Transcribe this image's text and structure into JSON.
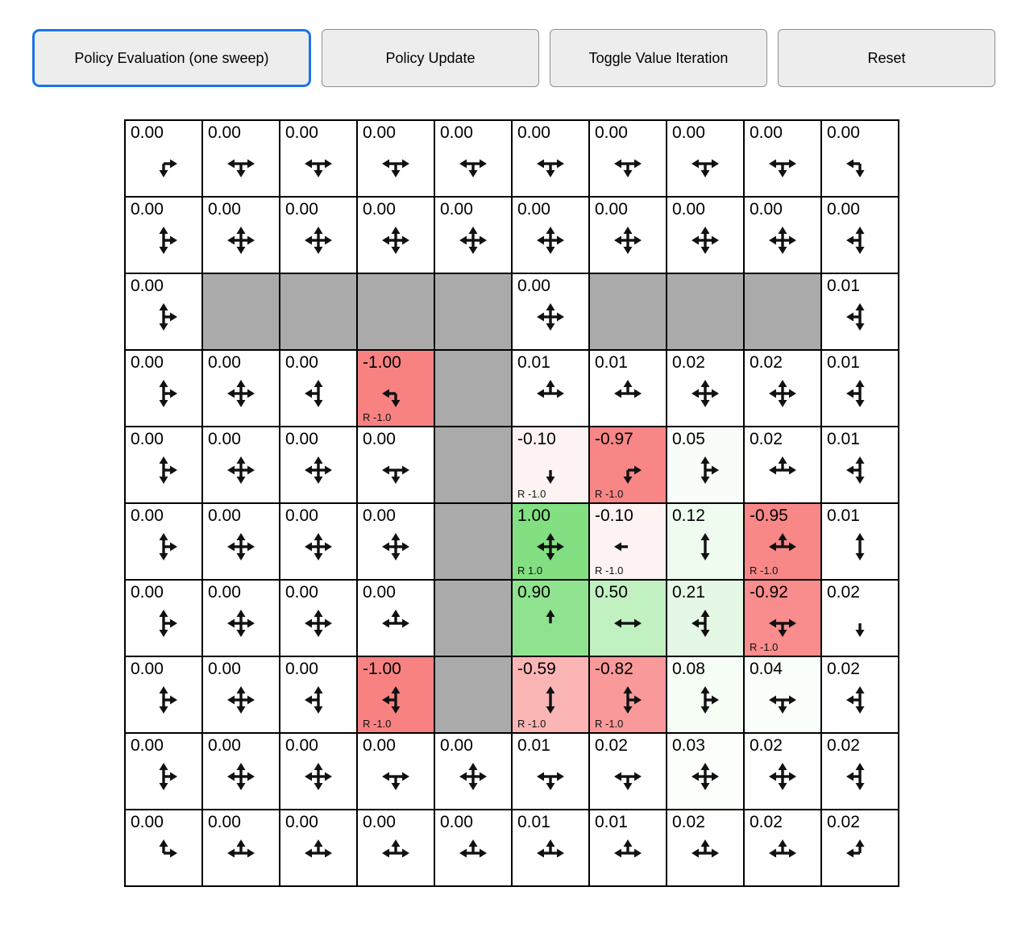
{
  "toolbar": {
    "buttons": [
      {
        "label": "Policy Evaluation (one sweep)",
        "active": true
      },
      {
        "label": "Policy Update",
        "active": false
      },
      {
        "label": "Toggle Value Iteration",
        "active": false
      },
      {
        "label": "Reset",
        "active": false
      }
    ]
  },
  "colors": {
    "active_button_border": "#1a73e8",
    "button_bg": "#ededed",
    "grid_border": "#000000",
    "wall": "#aaaaaa",
    "positive_base": "#82e082",
    "negative_base": "#f88282"
  },
  "grid": {
    "rows": 10,
    "cols": 10,
    "legend": {
      "dirs_key": "U=up, D=down, L=left, R=right"
    },
    "cells": [
      [
        {
          "v": "0.00",
          "d": "RD"
        },
        {
          "v": "0.00",
          "d": "LRD"
        },
        {
          "v": "0.00",
          "d": "LRD"
        },
        {
          "v": "0.00",
          "d": "LRD"
        },
        {
          "v": "0.00",
          "d": "LRD"
        },
        {
          "v": "0.00",
          "d": "LRD"
        },
        {
          "v": "0.00",
          "d": "LRD"
        },
        {
          "v": "0.00",
          "d": "LRD"
        },
        {
          "v": "0.00",
          "d": "LRD"
        },
        {
          "v": "0.00",
          "d": "LD"
        }
      ],
      [
        {
          "v": "0.00",
          "d": "URD"
        },
        {
          "v": "0.00",
          "d": "UDLR"
        },
        {
          "v": "0.00",
          "d": "UDLR"
        },
        {
          "v": "0.00",
          "d": "UDLR"
        },
        {
          "v": "0.00",
          "d": "UDLR"
        },
        {
          "v": "0.00",
          "d": "UDLR"
        },
        {
          "v": "0.00",
          "d": "UDLR"
        },
        {
          "v": "0.00",
          "d": "UDLR"
        },
        {
          "v": "0.00",
          "d": "UDLR"
        },
        {
          "v": "0.00",
          "d": "ULD"
        }
      ],
      [
        {
          "v": "0.00",
          "d": "URD"
        },
        {
          "w": true
        },
        {
          "w": true
        },
        {
          "w": true
        },
        {
          "w": true
        },
        {
          "v": "0.00",
          "d": "UDLR"
        },
        {
          "w": true
        },
        {
          "w": true
        },
        {
          "w": true
        },
        {
          "v": "0.01",
          "d": "ULD"
        }
      ],
      [
        {
          "v": "0.00",
          "d": "URD"
        },
        {
          "v": "0.00",
          "d": "UDLR"
        },
        {
          "v": "0.00",
          "d": "ULD"
        },
        {
          "v": "-1.00",
          "d": "LD",
          "r": "R -1.0"
        },
        {
          "w": true
        },
        {
          "v": "0.01",
          "d": "LUR"
        },
        {
          "v": "0.01",
          "d": "LUR"
        },
        {
          "v": "0.02",
          "d": "UDLR"
        },
        {
          "v": "0.02",
          "d": "UDLR"
        },
        {
          "v": "0.01",
          "d": "ULD"
        }
      ],
      [
        {
          "v": "0.00",
          "d": "URD"
        },
        {
          "v": "0.00",
          "d": "UDLR"
        },
        {
          "v": "0.00",
          "d": "UDLR"
        },
        {
          "v": "0.00",
          "d": "LRD"
        },
        {
          "w": true
        },
        {
          "v": "-0.10",
          "d": "D",
          "r": "R -1.0"
        },
        {
          "v": "-0.97",
          "d": "RD",
          "r": "R -1.0"
        },
        {
          "v": "0.05",
          "d": "URD"
        },
        {
          "v": "0.02",
          "d": "LUR"
        },
        {
          "v": "0.01",
          "d": "ULD"
        }
      ],
      [
        {
          "v": "0.00",
          "d": "URD"
        },
        {
          "v": "0.00",
          "d": "UDLR"
        },
        {
          "v": "0.00",
          "d": "UDLR"
        },
        {
          "v": "0.00",
          "d": "UDLR"
        },
        {
          "w": true
        },
        {
          "v": "1.00",
          "d": "UDLR",
          "r": "R 1.0"
        },
        {
          "v": "-0.10",
          "d": "L",
          "r": "R -1.0"
        },
        {
          "v": "0.12",
          "d": "UD"
        },
        {
          "v": "-0.95",
          "d": "LUR",
          "r": "R -1.0"
        },
        {
          "v": "0.01",
          "d": "UD"
        }
      ],
      [
        {
          "v": "0.00",
          "d": "URD"
        },
        {
          "v": "0.00",
          "d": "UDLR"
        },
        {
          "v": "0.00",
          "d": "UDLR"
        },
        {
          "v": "0.00",
          "d": "LUR"
        },
        {
          "w": true
        },
        {
          "v": "0.90",
          "d": "U"
        },
        {
          "v": "0.50",
          "d": "LR"
        },
        {
          "v": "0.21",
          "d": "ULD"
        },
        {
          "v": "-0.92",
          "d": "LRD",
          "r": "R -1.0"
        },
        {
          "v": "0.02",
          "d": "D"
        }
      ],
      [
        {
          "v": "0.00",
          "d": "URD"
        },
        {
          "v": "0.00",
          "d": "UDLR"
        },
        {
          "v": "0.00",
          "d": "ULD"
        },
        {
          "v": "-1.00",
          "d": "ULD",
          "r": "R -1.0"
        },
        {
          "w": true
        },
        {
          "v": "-0.59",
          "d": "UD",
          "r": "R -1.0"
        },
        {
          "v": "-0.82",
          "d": "URD",
          "r": "R -1.0"
        },
        {
          "v": "0.08",
          "d": "URD"
        },
        {
          "v": "0.04",
          "d": "LRD"
        },
        {
          "v": "0.02",
          "d": "ULD"
        }
      ],
      [
        {
          "v": "0.00",
          "d": "URD"
        },
        {
          "v": "0.00",
          "d": "UDLR"
        },
        {
          "v": "0.00",
          "d": "UDLR"
        },
        {
          "v": "0.00",
          "d": "LRD"
        },
        {
          "v": "0.00",
          "d": "UDLR"
        },
        {
          "v": "0.01",
          "d": "LRD"
        },
        {
          "v": "0.02",
          "d": "LRD"
        },
        {
          "v": "0.03",
          "d": "UDLR"
        },
        {
          "v": "0.02",
          "d": "UDLR"
        },
        {
          "v": "0.02",
          "d": "ULD"
        }
      ],
      [
        {
          "v": "0.00",
          "d": "UR"
        },
        {
          "v": "0.00",
          "d": "LUR"
        },
        {
          "v": "0.00",
          "d": "LUR"
        },
        {
          "v": "0.00",
          "d": "LUR"
        },
        {
          "v": "0.00",
          "d": "LUR"
        },
        {
          "v": "0.01",
          "d": "LUR"
        },
        {
          "v": "0.01",
          "d": "LUR"
        },
        {
          "v": "0.02",
          "d": "LUR"
        },
        {
          "v": "0.02",
          "d": "LUR"
        },
        {
          "v": "0.02",
          "d": "LU"
        }
      ]
    ]
  }
}
